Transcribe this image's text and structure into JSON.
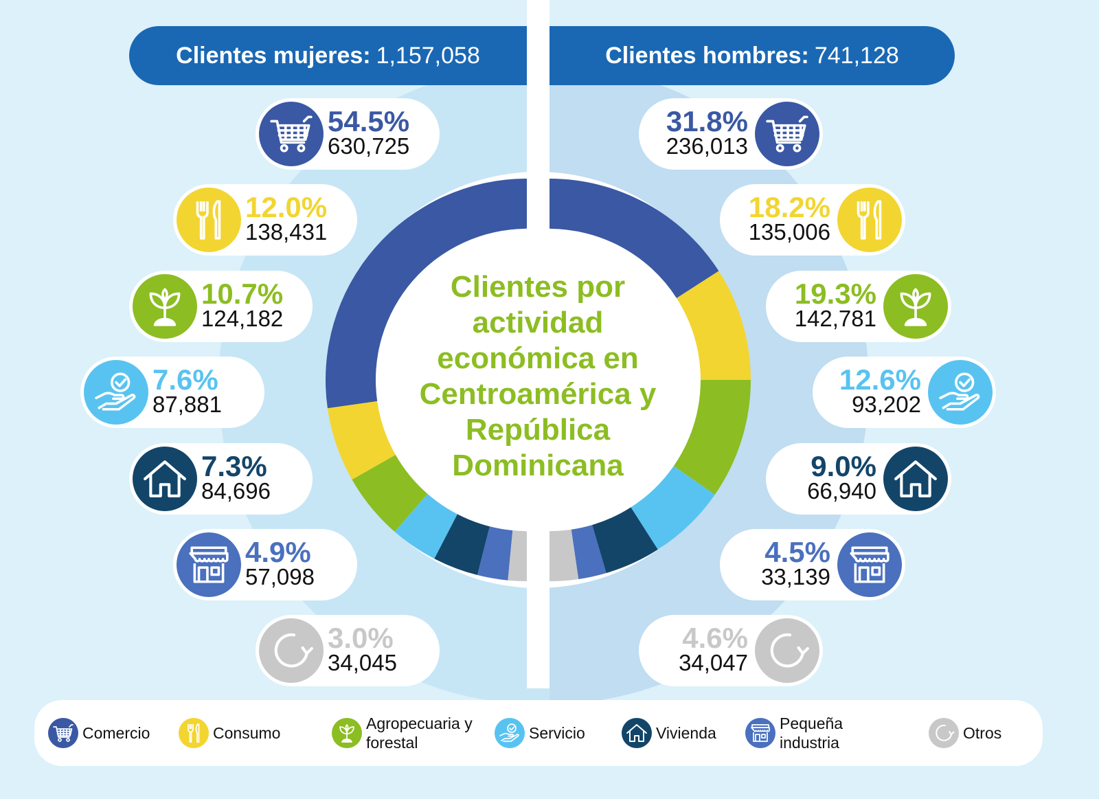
{
  "headers": {
    "women_label": "Clientes mujeres:",
    "women_total": "1,157,058",
    "men_label": "Clientes hombres:",
    "men_total": "741,128"
  },
  "center_title": "Clientes por actividad económica en Centroamérica y República Dominicana",
  "categories": [
    {
      "name": "Comercio",
      "icon": "shopping-cart-icon",
      "color": "#3a58a3"
    },
    {
      "name": "Consumo",
      "icon": "fork-knife-icon",
      "color": "#f2d531"
    },
    {
      "name": "Agropecuaria y forestal",
      "icon": "sprout-icon",
      "color": "#8cbd22"
    },
    {
      "name": "Servicio",
      "icon": "hand-check-icon",
      "color": "#58c3f0"
    },
    {
      "name": "Vivienda",
      "icon": "house-icon",
      "color": "#134569"
    },
    {
      "name": "Pequeña industria",
      "icon": "storefront-icon",
      "color": "#4a70be"
    },
    {
      "name": "Otros",
      "icon": "refresh-icon",
      "color": "#c8c8c8"
    }
  ],
  "chart_data": {
    "type": "donut (split halves)",
    "title": "Clientes por actividad económica en Centroamérica y República Dominicana",
    "categories": [
      "Comercio",
      "Consumo",
      "Agropecuaria y forestal",
      "Servicio",
      "Vivienda",
      "Pequeña industria",
      "Otros"
    ],
    "legend_placement": "bottom",
    "series": [
      {
        "name": "Clientes mujeres",
        "total": "1,157,058",
        "percent": [
          54.5,
          12.0,
          10.7,
          7.6,
          7.3,
          4.9,
          3.0
        ],
        "percent_labels": [
          "54.5%",
          "12.0%",
          "10.7%",
          "7.6%",
          "7.3%",
          "4.9%",
          "3.0%"
        ],
        "values": [
          "630,725",
          "138,431",
          "124,182",
          "87,881",
          "84,696",
          "57,098",
          "34,045"
        ]
      },
      {
        "name": "Clientes hombres",
        "total": "741,128",
        "percent": [
          31.8,
          18.2,
          19.3,
          12.6,
          9.0,
          4.5,
          4.6
        ],
        "percent_labels": [
          "31.8%",
          "18.2%",
          "19.3%",
          "12.6%",
          "9.0%",
          "4.5%",
          "4.6%"
        ],
        "values": [
          "236,013",
          "135,006",
          "142,781",
          "93,202",
          "66,940",
          "33,139",
          "34,047"
        ]
      }
    ]
  },
  "colors": {
    "header": "#1a68b4",
    "background": "#dcf1fa",
    "title_green": "#8cbd22"
  }
}
